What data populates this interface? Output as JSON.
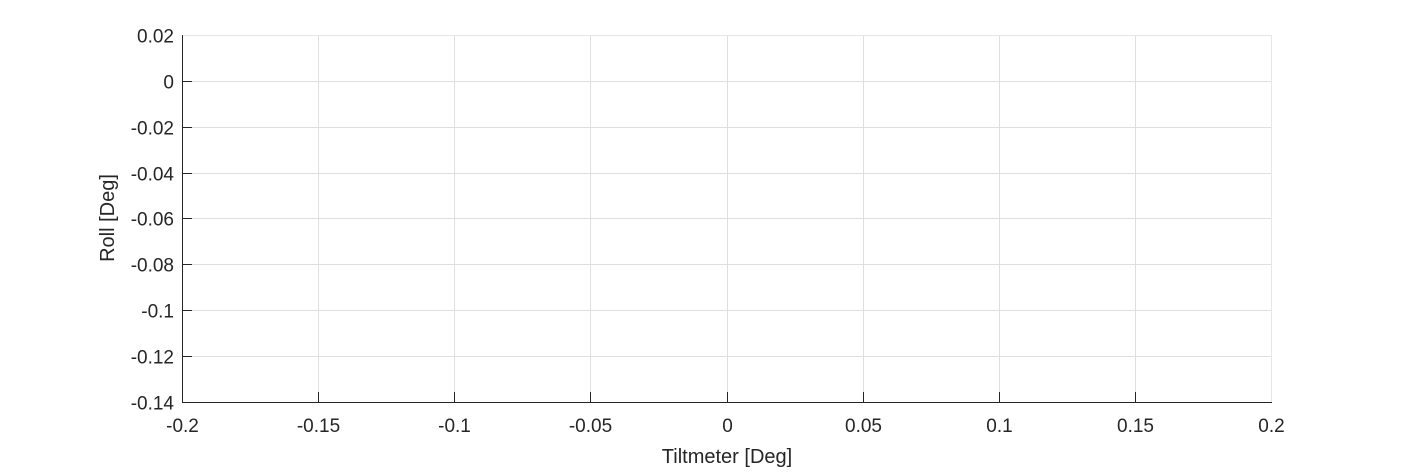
{
  "chart_data": {
    "type": "scatter",
    "title": "",
    "xlabel": "Tiltmeter [Deg]",
    "ylabel": "Roll [Deg]",
    "xlim": [
      -0.2,
      0.2
    ],
    "ylim": [
      -0.14,
      0.02
    ],
    "x_ticks": [
      -0.2,
      -0.15,
      -0.1,
      -0.05,
      0,
      0.05,
      0.1,
      0.15,
      0.2
    ],
    "x_tick_labels": [
      "-0.2",
      "-0.15",
      "-0.1",
      "-0.05",
      "0",
      "0.05",
      "0.1",
      "0.15",
      "0.2"
    ],
    "y_ticks": [
      0.02,
      0,
      -0.02,
      -0.04,
      -0.06,
      -0.08,
      -0.1,
      -0.12,
      -0.14
    ],
    "y_tick_labels": [
      "0.02",
      "0",
      "-0.02",
      "-0.04",
      "-0.06",
      "-0.08",
      "-0.1",
      "-0.12",
      "-0.14"
    ],
    "grid": true,
    "series": [],
    "colors": {
      "axis": "#262626",
      "grid": "#dfdfdf",
      "box": "#e6e6e6",
      "background": "#ffffff"
    }
  }
}
